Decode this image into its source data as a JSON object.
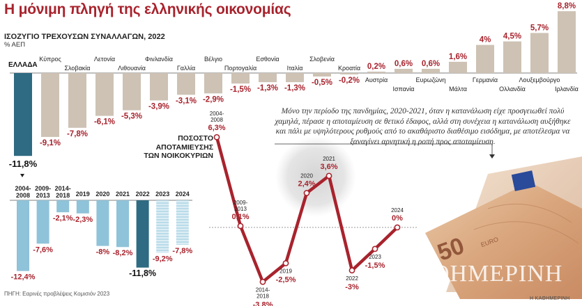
{
  "headline": "Η μόνιμη πληγή της ελληνικής οικονομίας",
  "note": "Μόνο την περίοδο της πανδημίας, 2020-2021, όταν η κατανάλωση είχε προσγειωθεί πολύ χαμηλά, πέρασε η αποταμίευση σε θετικό έδαφος, αλλά στη συνέχεια η κατανάλωση αυξήθηκε και πάλι με υψηλότερους ρυθμούς από το ακαθάριστο διαθέσιμο εισόδημα, με αποτέλεσμα να ξαναγίνει αρνητική η ροπή προς αποταμίευση.",
  "source": "ΠΗΓΗ: Εαρινές προβλέψεις Κομισιόν 2023",
  "brand": "Η ΚΑΘΗΜΕΡΙΝΗ",
  "watermark": "ΘΗΜΕΡΙΝΗ",
  "colors": {
    "headline": "#a8232d",
    "negative_label": "#a8232d",
    "positive_label": "#a8232d",
    "bar_other": "#cdc2b4",
    "bar_greece": "#2f6b82",
    "bar_greece_years": "#8fc3d9",
    "bar_forecast": "#b9dbe9",
    "line": "#a8232d"
  },
  "chart_data": [
    {
      "type": "bar",
      "title": "ΙΣΟΖΥΓΙΟ ΤΡΕΧΟΥΣΩΝ ΣΥΝΑΛΛΑΓΩΝ, 2022",
      "ylabel": "% ΑΕΠ",
      "categories": [
        "ΕΛΛΑΔΑ",
        "Κύπρος",
        "Σλοβακία",
        "Λετονία",
        "Λιθουανία",
        "Φινλανδία",
        "Γαλλία",
        "Βέλγιο",
        "Πορτογαλία",
        "Εσθονία",
        "Ιταλία",
        "Σλοβενία",
        "Κροατία",
        "Αυστρία",
        "Ισπανία",
        "Ευρωζώνη",
        "Μάλτα",
        "Γερμανία",
        "Ολλανδία",
        "Λουξεμβούργο",
        "Ιρλανδία"
      ],
      "values": [
        -11.8,
        -9.1,
        -7.8,
        -6.1,
        -5.3,
        -3.9,
        -3.1,
        -2.9,
        -1.5,
        -1.3,
        -1.3,
        -0.5,
        -0.2,
        0.2,
        0.6,
        0.6,
        1.6,
        4.0,
        4.5,
        5.7,
        8.8
      ],
      "value_labels": [
        "-11,8%",
        "-9,1%",
        "-7,8%",
        "-6,1%",
        "-5,3%",
        "-3,9%",
        "-3,1%",
        "-2,9%",
        "-1,5%",
        "-1,3%",
        "-1,3%",
        "-0,5%",
        "-0,2%",
        "0,2%",
        "0,6%",
        "0,6%",
        "1,6%",
        "4%",
        "4,5%",
        "5,7%",
        "8,8%"
      ],
      "grid": false,
      "legend": "none"
    },
    {
      "type": "bar",
      "categories": [
        "2004-2008",
        "2009-2013",
        "2014-2018",
        "2019",
        "2020",
        "2021",
        "2022",
        "2023",
        "2024"
      ],
      "category_lines": [
        [
          "2004-",
          "2008"
        ],
        [
          "2009-",
          "2013"
        ],
        [
          "2014-",
          "2018"
        ],
        [
          "2019"
        ],
        [
          "2020"
        ],
        [
          "2021"
        ],
        [
          "2022"
        ],
        [
          "2023"
        ],
        [
          "2024"
        ]
      ],
      "values": [
        -12.4,
        -7.6,
        -2.1,
        -2.3,
        -8.0,
        -8.2,
        -11.8,
        -9.2,
        -7.8
      ],
      "value_labels": [
        "-12,4%",
        "-7,6%",
        "-2,1%",
        "-2,3%",
        "-8%",
        "-8,2%",
        "-11,8%",
        "-9,2%",
        "-7,8%"
      ],
      "forecast": [
        false,
        false,
        false,
        false,
        false,
        false,
        false,
        true,
        true
      ],
      "highlight": [
        false,
        false,
        false,
        false,
        false,
        false,
        true,
        false,
        false
      ],
      "grid": false,
      "legend": "none"
    },
    {
      "type": "line",
      "title": "ΠΟΣΟΣΤΟ ΑΠΟΤΑΜΙΕΥΣΗΣ ΤΩΝ ΝΟΙΚΟΚΥΡΙΩΝ",
      "title_lines": [
        "ΠΟΣΟΣΤΟ",
        "ΑΠΟΤΑΜΙΕΥΣΗΣ",
        "ΤΩΝ ΝΟΙΚΟΚΥΡΙΩΝ"
      ],
      "x": [
        "2004-2008",
        "2009-2013",
        "2014-2018",
        "2019",
        "2020",
        "2021",
        "2022",
        "2023",
        "2024"
      ],
      "x_lines": [
        [
          "2004-",
          "2008"
        ],
        [
          "2009-",
          "2013"
        ],
        [
          "2014-",
          "2018"
        ],
        [
          "2019"
        ],
        [
          "2020"
        ],
        [
          "2021"
        ],
        [
          "2022"
        ],
        [
          "2023"
        ],
        [
          "2024"
        ]
      ],
      "values": [
        6.3,
        0.1,
        -3.8,
        -2.5,
        2.4,
        3.6,
        -3.0,
        -1.5,
        0.0
      ],
      "value_labels": [
        "6,3%",
        "0,1%",
        "-3,8%",
        "-2,5%",
        "2,4%",
        "3,6%",
        "-3%",
        "-1,5%",
        "0%"
      ],
      "zero_line": true,
      "grid": false,
      "legend": "none"
    }
  ]
}
